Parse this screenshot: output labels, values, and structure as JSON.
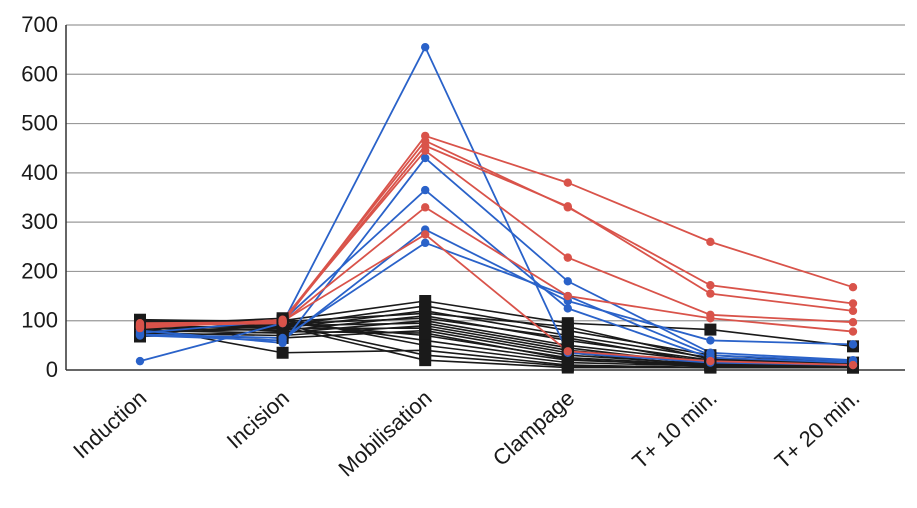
{
  "chart_data": {
    "type": "line",
    "title": "",
    "xlabel": "",
    "ylabel": "",
    "categories": [
      "Induction",
      "Incision",
      "Mobilisation",
      "Clampage",
      "T+ 10 min.",
      "T+ 20 min."
    ],
    "ylim": [
      0,
      700
    ],
    "yticks": [
      0,
      100,
      200,
      300,
      400,
      500,
      600,
      700
    ],
    "grid": true,
    "legend": "none",
    "colors": {
      "red": "#d9534a",
      "blue": "#2a62c9",
      "black": "#1a1a1a",
      "grid": "#9a9a9a",
      "axis": "#333333"
    },
    "series": [
      {
        "color": "red",
        "values": [
          90,
          95,
          475,
          380,
          260,
          168
        ]
      },
      {
        "color": "red",
        "values": [
          88,
          100,
          465,
          330,
          172,
          135
        ]
      },
      {
        "color": "red",
        "values": [
          92,
          98,
          455,
          332,
          155,
          120
        ]
      },
      {
        "color": "red",
        "values": [
          85,
          102,
          445,
          228,
          112,
          97
        ]
      },
      {
        "color": "red",
        "values": [
          95,
          97,
          330,
          150,
          105,
          78
        ]
      },
      {
        "color": "red",
        "values": [
          87,
          99,
          275,
          38,
          18,
          10
        ]
      },
      {
        "color": "blue",
        "values": [
          18,
          95,
          655,
          35,
          15,
          10
        ]
      },
      {
        "color": "blue",
        "values": [
          80,
          55,
          430,
          180,
          35,
          20
        ]
      },
      {
        "color": "blue",
        "values": [
          75,
          100,
          365,
          125,
          25,
          15
        ]
      },
      {
        "color": "blue",
        "values": [
          70,
          60,
          285,
          140,
          60,
          52
        ]
      },
      {
        "color": "blue",
        "values": [
          72,
          65,
          258,
          150,
          30,
          18
        ]
      },
      {
        "color": "black",
        "values": [
          100,
          100,
          140,
          95,
          82,
          48
        ]
      },
      {
        "color": "black",
        "values": [
          95,
          90,
          130,
          80,
          30,
          15
        ]
      },
      {
        "color": "black",
        "values": [
          90,
          85,
          120,
          70,
          25,
          12
        ]
      },
      {
        "color": "black",
        "values": [
          85,
          80,
          110,
          60,
          20,
          10
        ]
      },
      {
        "color": "black",
        "values": [
          80,
          75,
          100,
          50,
          18,
          8
        ]
      },
      {
        "color": "black",
        "values": [
          75,
          70,
          90,
          40,
          15,
          8
        ]
      },
      {
        "color": "black",
        "values": [
          70,
          65,
          80,
          30,
          12,
          6
        ]
      },
      {
        "color": "black",
        "values": [
          100,
          95,
          70,
          25,
          10,
          5
        ]
      },
      {
        "color": "black",
        "values": [
          98,
          100,
          60,
          20,
          10,
          5
        ]
      },
      {
        "color": "black",
        "values": [
          92,
          105,
          50,
          15,
          8,
          5
        ]
      },
      {
        "color": "black",
        "values": [
          88,
          35,
          40,
          10,
          5,
          5
        ]
      },
      {
        "color": "black",
        "values": [
          82,
          92,
          30,
          8,
          5,
          5
        ]
      },
      {
        "color": "black",
        "values": [
          78,
          88,
          20,
          5,
          5,
          5
        ]
      },
      {
        "color": "black",
        "values": [
          102,
          98,
          115,
          88,
          22,
          12
        ]
      },
      {
        "color": "black",
        "values": [
          96,
          94,
          105,
          65,
          14,
          9
        ]
      },
      {
        "color": "black",
        "values": [
          84,
          90,
          95,
          45,
          11,
          7
        ]
      },
      {
        "color": "black",
        "values": [
          76,
          84,
          85,
          35,
          9,
          6
        ]
      },
      {
        "color": "black",
        "values": [
          68,
          78,
          75,
          22,
          7,
          5
        ]
      }
    ]
  }
}
